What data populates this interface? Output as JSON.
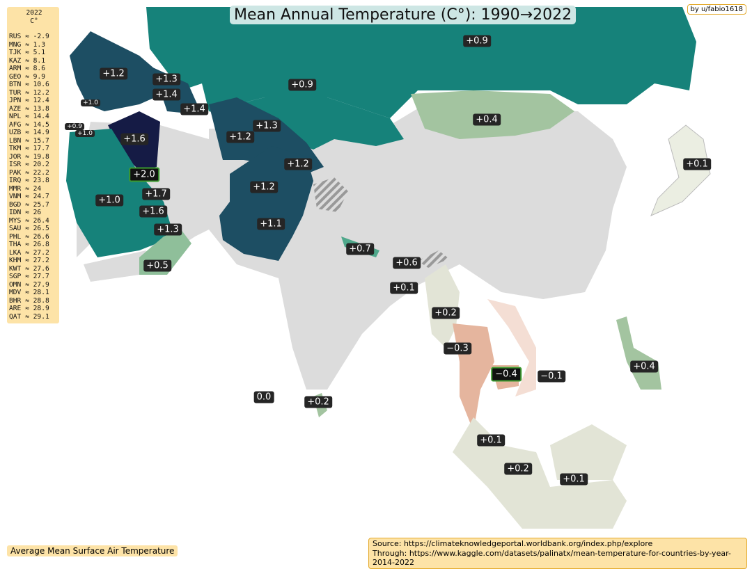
{
  "title": "Mean Annual Temperature (C°):  1990→2022",
  "credit": "by u/fabio1618",
  "legend": {
    "year": "2022",
    "unit": "C°",
    "rows": [
      "RUS ≈ -2.9",
      "MNG ≈ 1.3",
      "TJK ≈ 5.1",
      "KAZ ≈ 8.1",
      "ARM ≈ 8.6",
      "GEO ≈ 9.9",
      "BTN ≈ 10.6",
      "TUR ≈ 12.2",
      "JPN ≈ 12.4",
      "AZE ≈ 13.8",
      "NPL ≈ 14.4",
      "AFG ≈ 14.5",
      "UZB ≈ 14.9",
      "LBN ≈ 15.7",
      "TKM ≈ 17.7",
      "JOR ≈ 19.8",
      "ISR ≈ 20.2",
      "PAK ≈ 22.2",
      "IRQ ≈ 23.8",
      "MMR ≈ 24",
      "VNM ≈ 24.7",
      "BGD ≈ 25.7",
      "IDN ≈ 26",
      "MYS ≈ 26.4",
      "SAU ≈ 26.5",
      "PHL ≈ 26.6",
      "THA ≈ 26.8",
      "LKA ≈ 27.2",
      "KHM ≈ 27.2",
      "KWT ≈ 27.6",
      "SGP ≈ 27.7",
      "OMN ≈ 27.9",
      "MDV ≈ 28.1",
      "BHR ≈ 28.8",
      "ARE ≈ 28.9",
      "QAT ≈ 29.1"
    ]
  },
  "labels": [
    {
      "v": "+0.9",
      "c": "RUS"
    },
    {
      "v": "+0.9",
      "c": "KAZ"
    },
    {
      "v": "+0.4",
      "c": "MNG"
    },
    {
      "v": "+0.1",
      "c": "JPN"
    },
    {
      "v": "+1.2",
      "c": "TUR"
    },
    {
      "v": "+1.3",
      "c": "GEO"
    },
    {
      "v": "+1.4",
      "c": "ARM"
    },
    {
      "v": "+1.4",
      "c": "AZE"
    },
    {
      "v": "+1.0",
      "c": "LBN"
    },
    {
      "v": "+0.9",
      "c": "ISR"
    },
    {
      "v": "+1.0",
      "c": "JOR"
    },
    {
      "v": "+1.6",
      "c": "IRQ"
    },
    {
      "v": "+2.0",
      "c": "KWT"
    },
    {
      "v": "+1.7",
      "c": "BHR"
    },
    {
      "v": "+1.6",
      "c": "QAT"
    },
    {
      "v": "+1.3",
      "c": "ARE"
    },
    {
      "v": "+1.0",
      "c": "SAU"
    },
    {
      "v": "+0.5",
      "c": "OMN"
    },
    {
      "v": "+1.2",
      "c": "TKM"
    },
    {
      "v": "+1.3",
      "c": "UZB"
    },
    {
      "v": "+1.2",
      "c": "TJK"
    },
    {
      "v": "+1.2",
      "c": "AFG"
    },
    {
      "v": "+1.1",
      "c": "PAK"
    },
    {
      "v": "+0.7",
      "c": "NPL"
    },
    {
      "v": "+0.6",
      "c": "BTN"
    },
    {
      "v": "+0.1",
      "c": "BGD"
    },
    {
      "v": "+0.2",
      "c": "MMR"
    },
    {
      "v": "−0.3",
      "c": "THA"
    },
    {
      "v": "−0.4",
      "c": "KHM"
    },
    {
      "v": "−0.1",
      "c": "VNM"
    },
    {
      "v": "+0.4",
      "c": "PHL"
    },
    {
      "v": "0.0",
      "c": "MDV"
    },
    {
      "v": "+0.2",
      "c": "LKA"
    },
    {
      "v": "+0.1",
      "c": "MYS"
    },
    {
      "v": "+0.2",
      "c": "SGP"
    },
    {
      "v": "+0.1",
      "c": "IDN"
    }
  ],
  "colors": {
    "high": "#151b45",
    "mid": "#1d4e63",
    "teal": "#16827a",
    "low": "#a3c4a0",
    "zero": "#e2e4d6",
    "neg": "#e5b59e",
    "none": "#dcdcdc"
  },
  "footer_left": "Average Mean Surface Air Temperature",
  "source": {
    "line1": "Source: https://climateknowledgeportal.worldbank.org/index.php/explore",
    "line2": "Through: https://www.kaggle.com/datasets/palinatx/mean-temperature-for-countries-by-year-2014-2022"
  }
}
